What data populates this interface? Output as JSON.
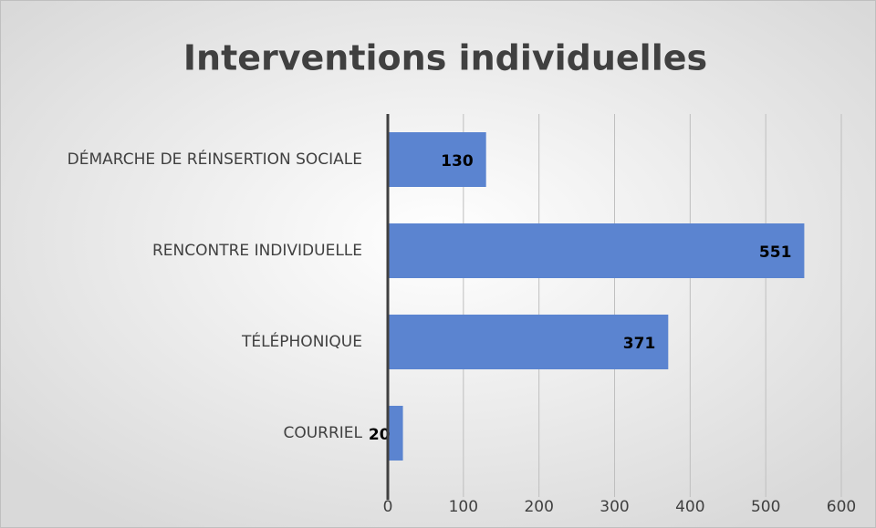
{
  "chart_data": {
    "type": "bar",
    "orientation": "horizontal",
    "title": "Interventions individuelles",
    "categories": [
      "DÉMARCHE DE RÉINSERTION SOCIALE",
      "RENCONTRE INDIVIDUELLE",
      "TÉLÉPHONIQUE",
      "COURRIEL"
    ],
    "values": [
      130,
      551,
      371,
      20
    ],
    "color": "#5b84d0",
    "xlim": [
      0,
      600
    ],
    "xticks": [
      0,
      100,
      200,
      300,
      400,
      500,
      600
    ],
    "grid": true
  }
}
